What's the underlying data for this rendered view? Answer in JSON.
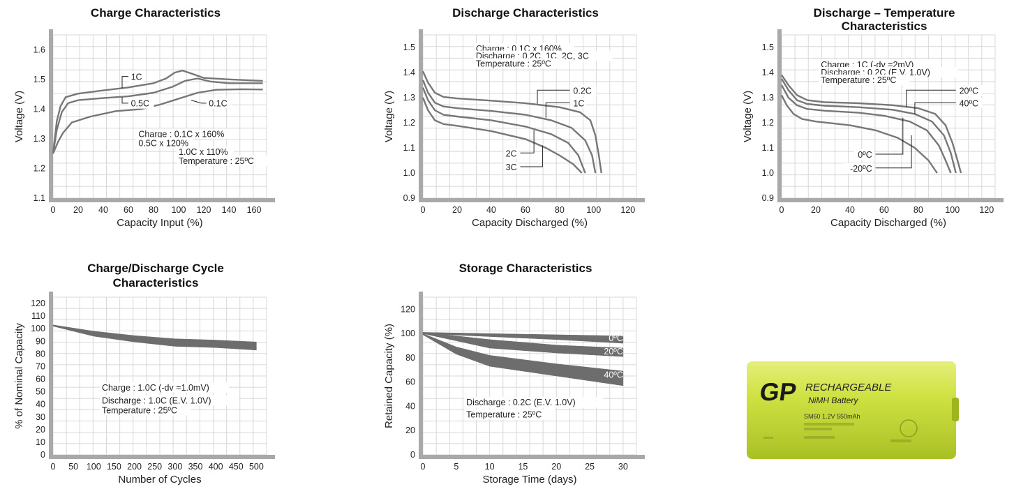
{
  "chart_data": [
    {
      "id": "c1",
      "type": "line",
      "title": [
        "Charge Characteristics"
      ],
      "xlabel": "Capacity Input (%)",
      "ylabel": "Voltage (V)",
      "xlim": [
        0,
        170
      ],
      "ylim": [
        1.1,
        1.65
      ],
      "xticks": [
        0,
        20,
        40,
        60,
        80,
        100,
        120,
        140,
        160
      ],
      "yticks": [
        1.1,
        1.2,
        1.3,
        1.4,
        1.5,
        1.6
      ],
      "ytick_labels": [
        "1.1",
        "1.2",
        "1.3",
        "1.4",
        "1.5",
        "1.6"
      ],
      "grid": true,
      "notes": [
        "Charge : 0.1C x 160%",
        "0.5C x 120%",
        "1.0C x 110%",
        "Temperature : 25ºC"
      ],
      "series": [
        {
          "name": "1C",
          "points": [
            [
              0,
              1.25
            ],
            [
              3,
              1.36
            ],
            [
              6,
              1.41
            ],
            [
              10,
              1.44
            ],
            [
              20,
              1.452
            ],
            [
              40,
              1.463
            ],
            [
              60,
              1.473
            ],
            [
              80,
              1.487
            ],
            [
              90,
              1.503
            ],
            [
              97,
              1.523
            ],
            [
              103,
              1.53
            ],
            [
              110,
              1.52
            ],
            [
              120,
              1.505
            ],
            [
              140,
              1.5
            ],
            [
              167,
              1.495
            ]
          ]
        },
        {
          "name": "0.5C",
          "points": [
            [
              0,
              1.25
            ],
            [
              3,
              1.33
            ],
            [
              7,
              1.39
            ],
            [
              12,
              1.42
            ],
            [
              20,
              1.43
            ],
            [
              40,
              1.437
            ],
            [
              60,
              1.443
            ],
            [
              80,
              1.455
            ],
            [
              95,
              1.475
            ],
            [
              105,
              1.495
            ],
            [
              115,
              1.503
            ],
            [
              125,
              1.493
            ],
            [
              140,
              1.487
            ],
            [
              167,
              1.487
            ]
          ]
        },
        {
          "name": "0.1C",
          "points": [
            [
              0,
              1.25
            ],
            [
              4,
              1.29
            ],
            [
              8,
              1.32
            ],
            [
              15,
              1.355
            ],
            [
              30,
              1.375
            ],
            [
              50,
              1.393
            ],
            [
              70,
              1.4
            ],
            [
              85,
              1.415
            ],
            [
              100,
              1.435
            ],
            [
              115,
              1.455
            ],
            [
              130,
              1.465
            ],
            [
              150,
              1.467
            ],
            [
              167,
              1.466
            ]
          ]
        }
      ],
      "labels": [
        {
          "text": "1C",
          "series": "1C"
        },
        {
          "text": "0.5C",
          "series": "0.5C"
        },
        {
          "text": "0.1C",
          "series": "0.1C"
        }
      ]
    },
    {
      "id": "c2",
      "type": "line",
      "title": [
        "Discharge Characteristics"
      ],
      "xlabel": "Capacity Discharged (%)",
      "ylabel": "Voltage (V)",
      "xlim": [
        0,
        125
      ],
      "ylim": [
        0.9,
        1.55
      ],
      "xticks": [
        0,
        20,
        40,
        60,
        80,
        100,
        120
      ],
      "yticks": [
        0.9,
        1.0,
        1.1,
        1.2,
        1.3,
        1.4,
        1.5
      ],
      "ytick_labels": [
        "0.9",
        "1.0",
        "1.1",
        "1.2",
        "1.3",
        "1.4",
        "1.5"
      ],
      "grid": true,
      "notes": [
        "Charge : 0.1C x 160%",
        "Discharge : 0.2C, 1C, 2C, 3C",
        "Temperature : 25ºC"
      ],
      "series": [
        {
          "name": "0.2C",
          "points": [
            [
              0,
              1.405
            ],
            [
              3,
              1.36
            ],
            [
              7,
              1.32
            ],
            [
              12,
              1.303
            ],
            [
              20,
              1.297
            ],
            [
              40,
              1.288
            ],
            [
              60,
              1.278
            ],
            [
              80,
              1.262
            ],
            [
              92,
              1.242
            ],
            [
              98,
              1.21
            ],
            [
              101,
              1.15
            ],
            [
              103,
              1.07
            ],
            [
              104.5,
              1.0
            ]
          ]
        },
        {
          "name": "1C",
          "points": [
            [
              0,
              1.37
            ],
            [
              3,
              1.32
            ],
            [
              7,
              1.28
            ],
            [
              12,
              1.265
            ],
            [
              20,
              1.258
            ],
            [
              40,
              1.247
            ],
            [
              60,
              1.232
            ],
            [
              75,
              1.21
            ],
            [
              87,
              1.18
            ],
            [
              95,
              1.13
            ],
            [
              99,
              1.07
            ],
            [
              101,
              1.0
            ]
          ]
        },
        {
          "name": "2C",
          "points": [
            [
              0,
              1.34
            ],
            [
              3,
              1.29
            ],
            [
              7,
              1.25
            ],
            [
              12,
              1.232
            ],
            [
              20,
              1.225
            ],
            [
              40,
              1.21
            ],
            [
              60,
              1.185
            ],
            [
              75,
              1.155
            ],
            [
              85,
              1.12
            ],
            [
              91,
              1.07
            ],
            [
              95,
              1.0
            ]
          ]
        },
        {
          "name": "3C",
          "points": [
            [
              0,
              1.3
            ],
            [
              3,
              1.25
            ],
            [
              7,
              1.21
            ],
            [
              12,
              1.195
            ],
            [
              20,
              1.188
            ],
            [
              40,
              1.167
            ],
            [
              60,
              1.135
            ],
            [
              72,
              1.1
            ],
            [
              80,
              1.07
            ],
            [
              88,
              1.035
            ],
            [
              93,
              1.0
            ]
          ]
        }
      ],
      "labels": [
        {
          "text": "0.2C",
          "series": "0.2C"
        },
        {
          "text": "1C",
          "series": "1C"
        },
        {
          "text": "2C",
          "series": "2C"
        },
        {
          "text": "3C",
          "series": "3C"
        }
      ]
    },
    {
      "id": "c3",
      "type": "line",
      "title": [
        "Discharge – Temperature",
        "Characteristics"
      ],
      "xlabel": "Capacity Discharged (%)",
      "ylabel": "Voltage (V)",
      "xlim": [
        0,
        125
      ],
      "ylim": [
        0.9,
        1.55
      ],
      "xticks": [
        0,
        20,
        40,
        60,
        80,
        100,
        120
      ],
      "yticks": [
        0.9,
        1.0,
        1.1,
        1.2,
        1.3,
        1.4,
        1.5
      ],
      "ytick_labels": [
        "0.9",
        "1.0",
        "1.1",
        "1.2",
        "1.3",
        "1.4",
        "1.5"
      ],
      "grid": true,
      "notes": [
        "Charge : 1C (-dv =2mV)",
        "Discharge : 0.2C (E.V. 1.0V)",
        "Temperature : 25ºC"
      ],
      "series": [
        {
          "name": "20ºC",
          "points": [
            [
              0,
              1.39
            ],
            [
              4,
              1.35
            ],
            [
              9,
              1.31
            ],
            [
              15,
              1.29
            ],
            [
              25,
              1.282
            ],
            [
              45,
              1.278
            ],
            [
              65,
              1.27
            ],
            [
              80,
              1.258
            ],
            [
              90,
              1.235
            ],
            [
              96,
              1.19
            ],
            [
              100,
              1.12
            ],
            [
              103,
              1.05
            ],
            [
              105,
              1.0
            ]
          ]
        },
        {
          "name": "40ºC",
          "points": [
            [
              0,
              1.375
            ],
            [
              4,
              1.33
            ],
            [
              9,
              1.29
            ],
            [
              15,
              1.275
            ],
            [
              25,
              1.268
            ],
            [
              45,
              1.262
            ],
            [
              65,
              1.252
            ],
            [
              78,
              1.235
            ],
            [
              88,
              1.205
            ],
            [
              95,
              1.15
            ],
            [
              99,
              1.08
            ],
            [
              102,
              1.0
            ]
          ]
        },
        {
          "name": "0ºC",
          "points": [
            [
              0,
              1.35
            ],
            [
              4,
              1.3
            ],
            [
              9,
              1.27
            ],
            [
              15,
              1.255
            ],
            [
              25,
              1.248
            ],
            [
              45,
              1.24
            ],
            [
              60,
              1.228
            ],
            [
              75,
              1.205
            ],
            [
              85,
              1.17
            ],
            [
              92,
              1.11
            ],
            [
              96,
              1.05
            ],
            [
              99,
              1.0
            ]
          ]
        },
        {
          "name": "-20ºC",
          "points": [
            [
              0,
              1.31
            ],
            [
              3,
              1.27
            ],
            [
              7,
              1.235
            ],
            [
              12,
              1.215
            ],
            [
              20,
              1.205
            ],
            [
              40,
              1.19
            ],
            [
              55,
              1.17
            ],
            [
              68,
              1.14
            ],
            [
              78,
              1.1
            ],
            [
              86,
              1.05
            ],
            [
              91,
              1.0
            ]
          ]
        }
      ],
      "labels": [
        {
          "text": "20ºC",
          "series": "20ºC"
        },
        {
          "text": "40ºC",
          "series": "40ºC"
        },
        {
          "text": "0ºC",
          "series": "0ºC"
        },
        {
          "text": "-20ºC",
          "series": "-20ºC"
        }
      ]
    },
    {
      "id": "c4",
      "type": "area",
      "title": [
        "Charge/Discharge Cycle",
        "Characteristics"
      ],
      "xlabel": "Number of Cycles",
      "ylabel": "% of Nominal Capacity",
      "xlim": [
        0,
        525
      ],
      "ylim": [
        0,
        125
      ],
      "xticks": [
        0,
        50,
        100,
        150,
        200,
        250,
        300,
        350,
        400,
        450,
        500
      ],
      "yticks": [
        0,
        10,
        20,
        30,
        40,
        50,
        60,
        70,
        80,
        90,
        100,
        110,
        120
      ],
      "ytick_labels": [
        "0",
        "10",
        "20",
        "30",
        "40",
        "50",
        "60",
        "70",
        "80",
        "90",
        "100",
        "110",
        "120"
      ],
      "grid": true,
      "notes": [
        "Charge : 1.0C (-dv =1.0mV)",
        "Discharge : 1.0C (E.V. 1.0V)",
        "Temperature : 25ºC"
      ],
      "series": [
        {
          "name": "",
          "upper": [
            [
              0,
              103
            ],
            [
              100,
              98
            ],
            [
              200,
              94.5
            ],
            [
              300,
              92
            ],
            [
              400,
              91
            ],
            [
              500,
              89.5
            ]
          ],
          "lower": [
            [
              0,
              102
            ],
            [
              100,
              94
            ],
            [
              200,
              89.5
            ],
            [
              300,
              86
            ],
            [
              400,
              85
            ],
            [
              500,
              83
            ]
          ]
        }
      ],
      "labels": []
    },
    {
      "id": "c5",
      "type": "area",
      "title": [
        "Storage Characteristics"
      ],
      "xlabel": "Storage Time (days)",
      "ylabel": "Retained Capacity (%)",
      "xlim": [
        0,
        32
      ],
      "ylim": [
        0,
        130
      ],
      "xticks": [
        0,
        5,
        10,
        15,
        20,
        25,
        30
      ],
      "yticks": [
        0,
        20,
        40,
        60,
        80,
        100,
        120
      ],
      "ytick_labels": [
        "0",
        "20",
        "40",
        "60",
        "80",
        "100",
        "120"
      ],
      "grid": true,
      "notes": [
        "Discharge : 0.2C (E.V. 1.0V)",
        "Temperature : 25ºC"
      ],
      "series": [
        {
          "name": "0ºC",
          "upper": [
            [
              0,
              101
            ],
            [
              10,
              100
            ],
            [
              20,
              99
            ],
            [
              30,
              98
            ]
          ],
          "lower": [
            [
              0,
              100
            ],
            [
              10,
              97.5
            ],
            [
              20,
              95
            ],
            [
              30,
              92
            ]
          ]
        },
        {
          "name": "20ºC",
          "upper": [
            [
              0,
              101
            ],
            [
              10,
              95
            ],
            [
              20,
              90.5
            ],
            [
              30,
              88
            ]
          ],
          "lower": [
            [
              0,
              100
            ],
            [
              10,
              88
            ],
            [
              20,
              84
            ],
            [
              30,
              81
            ]
          ]
        },
        {
          "name": "40ºC",
          "upper": [
            [
              0,
              100
            ],
            [
              5,
              89
            ],
            [
              10,
              82
            ],
            [
              20,
              75
            ],
            [
              30,
              69
            ]
          ],
          "lower": [
            [
              0,
              99
            ],
            [
              5,
              83
            ],
            [
              10,
              73
            ],
            [
              20,
              65
            ],
            [
              30,
              57
            ]
          ]
        }
      ],
      "labels": [
        {
          "text": "0ºC",
          "series": "0ºC"
        },
        {
          "text": "20ºC",
          "series": "20ºC"
        },
        {
          "text": "40ºC",
          "series": "40ºC"
        }
      ]
    }
  ],
  "battery": {
    "logo": "GP",
    "brand_line1": "RECHARGEABLE",
    "brand_line2": "NiMH Battery",
    "model": "SM60 1.2V 550mAh",
    "body_color": "#c9dd3a",
    "accent_color": "#b6cc2b"
  }
}
